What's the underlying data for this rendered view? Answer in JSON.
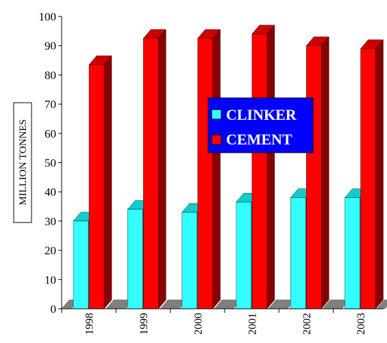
{
  "chart_data": {
    "type": "bar",
    "categories": [
      "1998",
      "1999",
      "2000",
      "2001",
      "2002",
      "2003"
    ],
    "series": [
      {
        "name": "CLINKER",
        "values": [
          30,
          34,
          33,
          36.5,
          38,
          38
        ]
      },
      {
        "name": "CEMENT",
        "values": [
          83.5,
          92.5,
          92.5,
          94,
          90,
          89
        ]
      }
    ],
    "title": "",
    "xlabel": "",
    "ylabel": "MILLION TONNES",
    "ylim": [
      0,
      100
    ],
    "yticks": [
      0,
      10,
      20,
      30,
      40,
      50,
      60,
      70,
      80,
      90,
      100
    ],
    "grid": false,
    "legend_position": "center-right"
  },
  "colors": {
    "clinker_front": "#33ffff",
    "clinker_side": "#009999",
    "clinker_top": "#11cccc",
    "cement_front": "#ff0000",
    "cement_side": "#880000",
    "cement_top": "#cc0000",
    "floor": "#808080",
    "legend_bg": "#0000ff"
  }
}
